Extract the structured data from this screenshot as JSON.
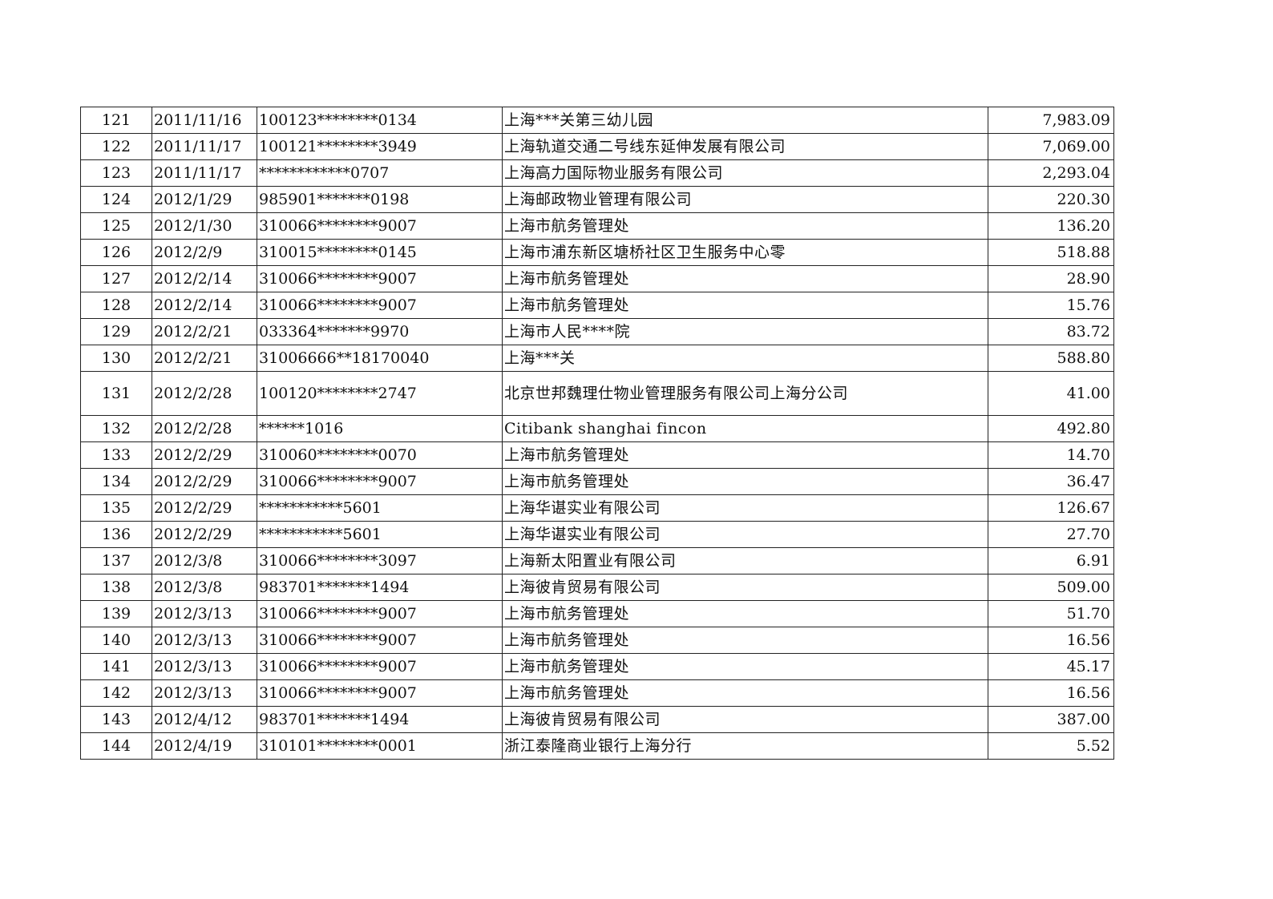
{
  "rows": [
    [
      "121",
      "2011/11/16",
      "100123********0134",
      "上海***关第三幼儿园",
      "7,983.09"
    ],
    [
      "122",
      "2011/11/17",
      "100121********3949",
      "上海轨道交通二号线东延伸发展有限公司",
      "7,069.00"
    ],
    [
      "123",
      "2011/11/17",
      "************0707",
      "上海高力国际物业服务有限公司",
      "2,293.04"
    ],
    [
      "124",
      "2012/1/29",
      "985901*******0198",
      "上海邮政物业管理有限公司",
      "220.30"
    ],
    [
      "125",
      "2012/1/30",
      "310066********9007",
      "上海市航务管理处",
      "136.20"
    ],
    [
      "126",
      "2012/2/9",
      "310015********0145",
      "上海市浦东新区塘桥社区卫生服务中心零",
      "518.88"
    ],
    [
      "127",
      "2012/2/14",
      "310066********9007",
      "上海市航务管理处",
      "28.90"
    ],
    [
      "128",
      "2012/2/14",
      "310066********9007",
      "上海市航务管理处",
      "15.76"
    ],
    [
      "129",
      "2012/2/21",
      "033364*******9970",
      "上海市人民****院",
      "83.72"
    ],
    [
      "130",
      "2012/2/21",
      "31006666**18170040",
      "上海***关",
      "588.80"
    ],
    [
      "131",
      "2012/2/28",
      "100120********2747",
      "北京世邦魏理仕物业管理服务有限公司上海分公司",
      "41.00"
    ],
    [
      "132",
      "2012/2/28",
      "******1016",
      "Citibank shanghai fincon",
      "492.80"
    ],
    [
      "133",
      "2012/2/29",
      "310060********0070",
      "上海市航务管理处",
      "14.70"
    ],
    [
      "134",
      "2012/2/29",
      "310066********9007",
      "上海市航务管理处",
      "36.47"
    ],
    [
      "135",
      "2012/2/29",
      "***********5601",
      "上海华谌实业有限公司",
      "126.67"
    ],
    [
      "136",
      "2012/2/29",
      "***********5601",
      "上海华谌实业有限公司",
      "27.70"
    ],
    [
      "137",
      "2012/3/8",
      "310066********3097",
      "上海新太阳置业有限公司",
      "6.91"
    ],
    [
      "138",
      "2012/3/8",
      "983701*******1494",
      "上海彼肯贸易有限公司",
      "509.00"
    ],
    [
      "139",
      "2012/3/13",
      "310066********9007",
      "上海市航务管理处",
      "51.70"
    ],
    [
      "140",
      "2012/3/13",
      "310066********9007",
      "上海市航务管理处",
      "16.56"
    ],
    [
      "141",
      "2012/3/13",
      "310066********9007",
      "上海市航务管理处",
      "45.17"
    ],
    [
      "142",
      "2012/3/13",
      "310066********9007",
      "上海市航务管理处",
      "16.56"
    ],
    [
      "143",
      "2012/4/12",
      "983701*******1494",
      "上海彼肯贸易有限公司",
      "387.00"
    ],
    [
      "144",
      "2012/4/19",
      "310101********0001",
      "浙江泰隆商业银行上海分行",
      "5.52"
    ]
  ]
}
